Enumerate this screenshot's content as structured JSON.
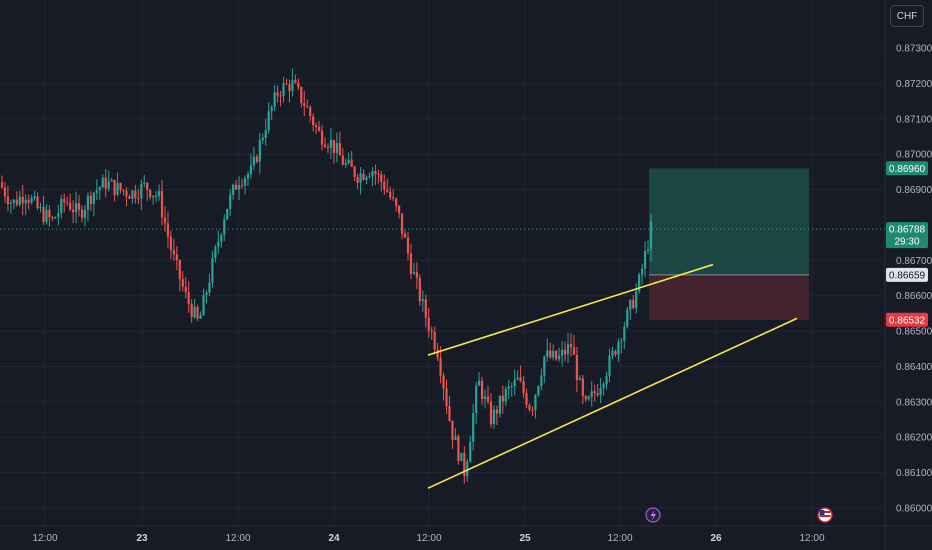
{
  "toolbar": {
    "currency_label": "CHF"
  },
  "colors": {
    "background": "#171b26",
    "grid": "#232632",
    "up": "#26a69a",
    "down": "#ef5350",
    "trendline": "#f7e94a",
    "profit_zone": "#1d4d4a",
    "loss_zone": "#4a2530",
    "text": "#b2b5be"
  },
  "chart_data": {
    "type": "candlestick",
    "symbol_quote": "CHF",
    "yaxis": {
      "range": [
        0.8596,
        0.8734
      ],
      "ticks": [
        "0.87300",
        "0.87200",
        "0.87100",
        "0.87000",
        "0.86900",
        "0.86700",
        "0.86600",
        "0.86500",
        "0.86400",
        "0.86300",
        "0.86200",
        "0.86100",
        "0.86000"
      ]
    },
    "xaxis": {
      "ticks": [
        {
          "label": "12:00",
          "bold": false
        },
        {
          "label": "23",
          "bold": true
        },
        {
          "label": "12:00",
          "bold": false
        },
        {
          "label": "24",
          "bold": true
        },
        {
          "label": "12:00",
          "bold": false
        },
        {
          "label": "25",
          "bold": true
        },
        {
          "label": "12:00",
          "bold": false
        },
        {
          "label": "26",
          "bold": true
        },
        {
          "label": "12:00",
          "bold": false
        }
      ]
    },
    "price_badges": [
      {
        "value": "0.86960",
        "kind": "target"
      },
      {
        "value": "0.86788",
        "kind": "current",
        "countdown": "29:30"
      },
      {
        "value": "0.86659",
        "kind": "entry"
      },
      {
        "value": "0.86532",
        "kind": "stop"
      }
    ],
    "position": {
      "entry": 0.86659,
      "target": 0.8696,
      "stop": 0.86532
    },
    "trendlines": [
      {
        "from": [
          0.86432
        ],
        "to": [
          0.86688
        ]
      },
      {
        "from": [
          0.86056
        ],
        "to": [
          0.86536
        ]
      }
    ],
    "price_path": [
      0.8692,
      0.8686,
      0.8689,
      0.8684,
      0.8681,
      0.8687,
      0.8683,
      0.8689,
      0.8692,
      0.869,
      0.8689,
      0.8691,
      0.8688,
      0.8672,
      0.866,
      0.8652,
      0.8668,
      0.8684,
      0.8693,
      0.8695,
      0.8708,
      0.8718,
      0.872,
      0.8714,
      0.8706,
      0.8703,
      0.8697,
      0.8694,
      0.8696,
      0.8691,
      0.8683,
      0.8668,
      0.8655,
      0.8644,
      0.8622,
      0.861,
      0.8636,
      0.8625,
      0.8632,
      0.8636,
      0.8628,
      0.8643,
      0.8642,
      0.8646,
      0.8628,
      0.8634,
      0.8642,
      0.8652,
      0.8662,
      0.86788
    ],
    "events": [
      "flash-icon",
      "us-flag-icon"
    ]
  }
}
